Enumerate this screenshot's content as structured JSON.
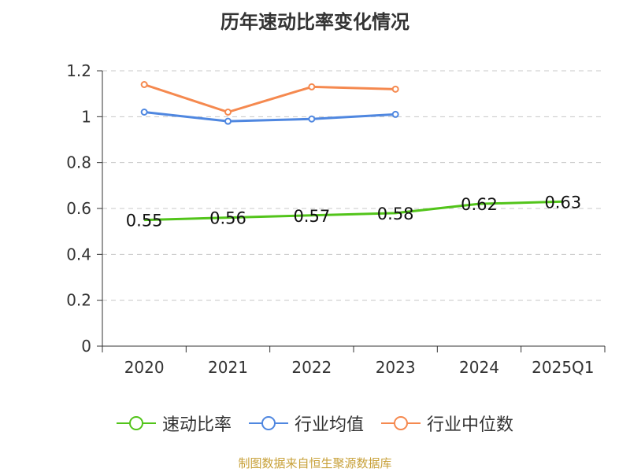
{
  "chart_data": {
    "type": "line",
    "title": "历年速动比率变化情况",
    "categories": [
      "2020",
      "2021",
      "2022",
      "2023",
      "2024",
      "2025Q1"
    ],
    "y_ticks": [
      "0",
      "0.2",
      "0.4",
      "0.6",
      "0.8",
      "1",
      "1.2"
    ],
    "ylim": [
      0,
      1.2
    ],
    "grid": true,
    "legend_position": "bottom",
    "series": [
      {
        "name": "速动比率",
        "color": "#52c41a",
        "values": [
          0.55,
          0.56,
          0.57,
          0.58,
          0.62,
          0.63
        ],
        "labels": [
          "0.55",
          "0.56",
          "0.57",
          "0.58",
          "0.62",
          "0.63"
        ]
      },
      {
        "name": "行业均值",
        "color": "#4f87e0",
        "values": [
          1.02,
          0.98,
          0.99,
          1.01,
          null,
          null
        ]
      },
      {
        "name": "行业中位数",
        "color": "#f5894f",
        "values": [
          1.14,
          1.02,
          1.13,
          1.12,
          null,
          null
        ]
      }
    ]
  },
  "source": {
    "text": "制图数据来自恒生聚源数据库",
    "color": "#c8a13a"
  }
}
